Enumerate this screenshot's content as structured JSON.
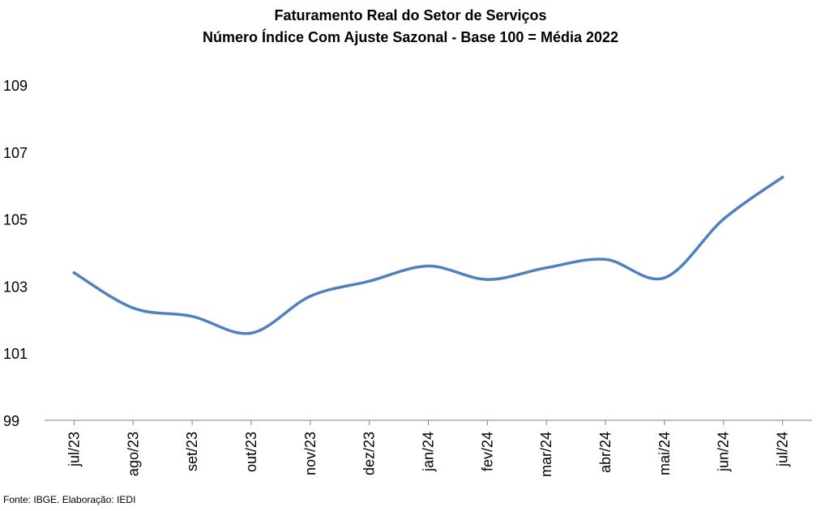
{
  "chart_data": {
    "type": "line",
    "title": "Faturamento Real do Setor de Serviços",
    "subtitle": "Número Índice Com Ajuste Sazonal - Base 100 = Média 2022",
    "categories": [
      "jul/23",
      "ago/23",
      "set/23",
      "out/23",
      "nov/23",
      "dez/23",
      "jan/24",
      "fev/24",
      "mar/24",
      "abr/24",
      "mai/24",
      "jun/24",
      "jul/24"
    ],
    "series": [
      {
        "values": [
          103.4,
          102.35,
          102.1,
          101.6,
          102.7,
          103.15,
          103.6,
          103.2,
          103.55,
          103.8,
          103.25,
          105.0,
          106.25
        ]
      }
    ],
    "yticks": [
      "99",
      "101",
      "103",
      "105",
      "107",
      "109"
    ],
    "ylim": [
      99,
      109
    ],
    "xlabel": "",
    "ylabel": "",
    "grid": false,
    "color": "#4f81bd"
  },
  "source": "Fonte: IBGE. Elaboração: IEDI"
}
